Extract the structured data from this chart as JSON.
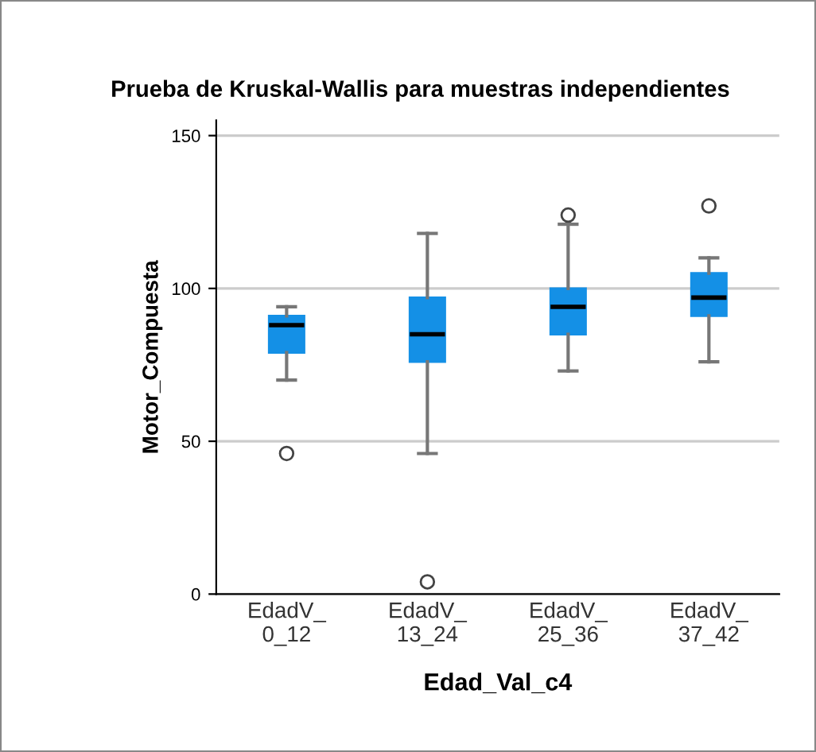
{
  "chart_data": {
    "type": "box",
    "title": "Prueba de Kruskal-Wallis para muestras independientes",
    "xlabel": "Edad_Val_c4",
    "ylabel": "Motor_Compuesta",
    "categories": [
      "EdadV_\n0_12",
      "EdadV_\n13_24",
      "EdadV_\n25_36",
      "EdadV_\n37_42"
    ],
    "color": "#1490e6",
    "boxes": [
      {
        "low": 70,
        "q1": 79,
        "median": 88,
        "q3": 91,
        "high": 94,
        "outliers": [
          46
        ]
      },
      {
        "low": 46,
        "q1": 76,
        "median": 85,
        "q3": 97,
        "high": 118,
        "outliers": [
          4
        ]
      },
      {
        "low": 73,
        "q1": 85,
        "median": 94,
        "q3": 100,
        "high": 121,
        "outliers": [
          124
        ]
      },
      {
        "low": 76,
        "q1": 91,
        "median": 97,
        "q3": 105,
        "high": 110,
        "outliers": [
          127
        ]
      }
    ],
    "ylim": [
      0,
      155
    ],
    "yticks": [
      0,
      50,
      100,
      150
    ],
    "grid": "y"
  }
}
